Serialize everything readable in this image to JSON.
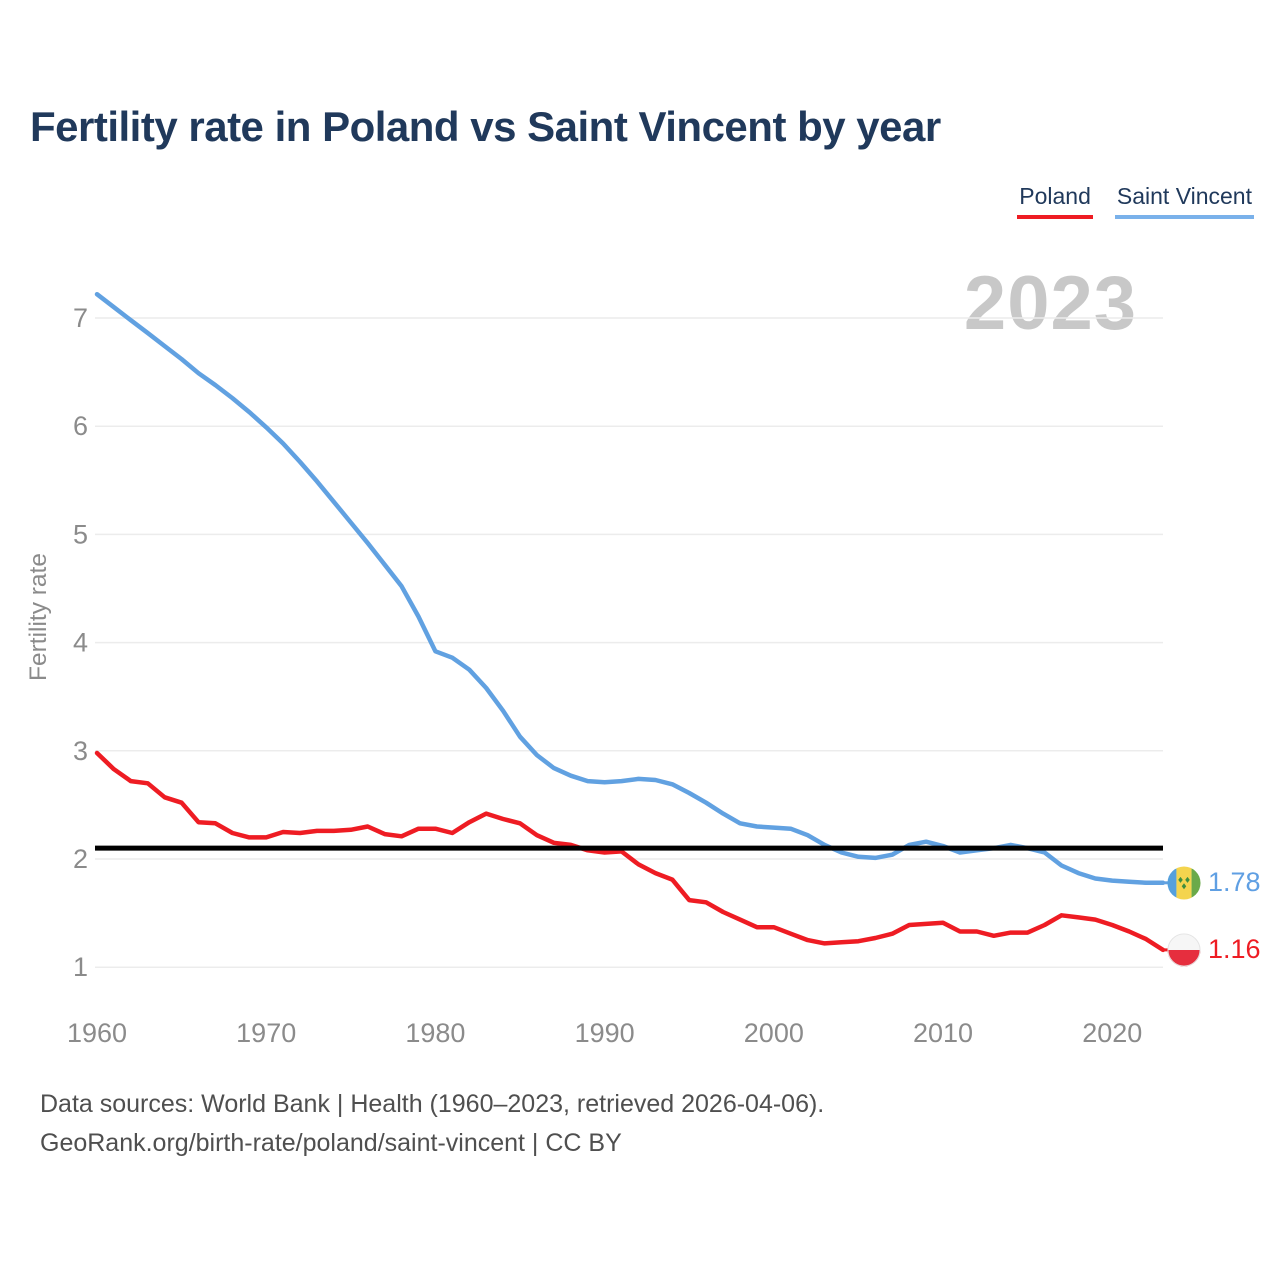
{
  "title": "Fertility rate in Poland vs Saint Vincent by year",
  "legend": [
    {
      "label": "Poland",
      "color": "#ee1c23"
    },
    {
      "label": "Saint Vincent",
      "color": "#7ab1ea"
    }
  ],
  "watermark": "2023",
  "y_axis": {
    "label": "Fertility rate",
    "ticks": [
      1,
      2,
      3,
      4,
      5,
      6,
      7
    ]
  },
  "x_axis": {
    "ticks": [
      1960,
      1970,
      1980,
      1990,
      2000,
      2010,
      2020
    ]
  },
  "reference_line": {
    "value": 2.1,
    "color": "#000000"
  },
  "end_labels": [
    {
      "series": "Saint Vincent",
      "value": "1.78",
      "color": "#5f9fe3"
    },
    {
      "series": "Poland",
      "value": "1.16",
      "color": "#ee1c23"
    }
  ],
  "footer": {
    "line1": "Data sources: World Bank | Health (1960–2023, retrieved 2026-04-06).",
    "line2": "GeoRank.org/birth-rate/poland/saint-vincent | CC BY"
  },
  "chart_data": {
    "type": "line",
    "title": "Fertility rate in Poland vs Saint Vincent by year",
    "ylabel": "Fertility rate",
    "x": [
      1960,
      1961,
      1962,
      1963,
      1964,
      1965,
      1966,
      1967,
      1968,
      1969,
      1970,
      1971,
      1972,
      1973,
      1974,
      1975,
      1976,
      1977,
      1978,
      1979,
      1980,
      1981,
      1982,
      1983,
      1984,
      1985,
      1986,
      1987,
      1988,
      1989,
      1990,
      1991,
      1992,
      1993,
      1994,
      1995,
      1996,
      1997,
      1998,
      1999,
      2000,
      2001,
      2002,
      2003,
      2004,
      2005,
      2006,
      2007,
      2008,
      2009,
      2010,
      2011,
      2012,
      2013,
      2014,
      2015,
      2016,
      2017,
      2018,
      2019,
      2020,
      2021,
      2022,
      2023
    ],
    "series": [
      {
        "name": "Poland",
        "color": "#ee1c23",
        "values": [
          2.98,
          2.83,
          2.72,
          2.7,
          2.57,
          2.52,
          2.34,
          2.33,
          2.24,
          2.2,
          2.2,
          2.25,
          2.24,
          2.26,
          2.26,
          2.27,
          2.3,
          2.23,
          2.21,
          2.28,
          2.28,
          2.24,
          2.34,
          2.42,
          2.37,
          2.33,
          2.22,
          2.15,
          2.13,
          2.08,
          2.06,
          2.07,
          1.95,
          1.87,
          1.81,
          1.62,
          1.6,
          1.51,
          1.44,
          1.37,
          1.37,
          1.31,
          1.25,
          1.22,
          1.23,
          1.24,
          1.27,
          1.31,
          1.39,
          1.4,
          1.41,
          1.33,
          1.33,
          1.29,
          1.32,
          1.32,
          1.39,
          1.48,
          1.46,
          1.44,
          1.39,
          1.33,
          1.26,
          1.16
        ]
      },
      {
        "name": "Saint Vincent",
        "color": "#61a1e1",
        "values": [
          7.22,
          7.1,
          6.98,
          6.86,
          6.74,
          6.62,
          6.49,
          6.38,
          6.26,
          6.13,
          5.99,
          5.84,
          5.67,
          5.49,
          5.3,
          5.11,
          4.92,
          4.72,
          4.52,
          4.24,
          3.92,
          3.86,
          3.75,
          3.58,
          3.37,
          3.13,
          2.96,
          2.84,
          2.77,
          2.72,
          2.71,
          2.72,
          2.74,
          2.73,
          2.69,
          2.61,
          2.52,
          2.42,
          2.33,
          2.3,
          2.29,
          2.28,
          2.22,
          2.13,
          2.06,
          2.02,
          2.01,
          2.04,
          2.13,
          2.16,
          2.12,
          2.06,
          2.08,
          2.1,
          2.13,
          2.1,
          2.06,
          1.94,
          1.87,
          1.82,
          1.8,
          1.79,
          1.78,
          1.78
        ]
      }
    ],
    "reference_line": 2.1,
    "xlim": [
      1960,
      2023
    ],
    "ylim": [
      0.6,
      7.4
    ],
    "y_ticks": [
      1,
      2,
      3,
      4,
      5,
      6,
      7
    ],
    "grid": "horizontal",
    "legend_position": "top-right",
    "annotations": {
      "current_year": "2023"
    }
  }
}
